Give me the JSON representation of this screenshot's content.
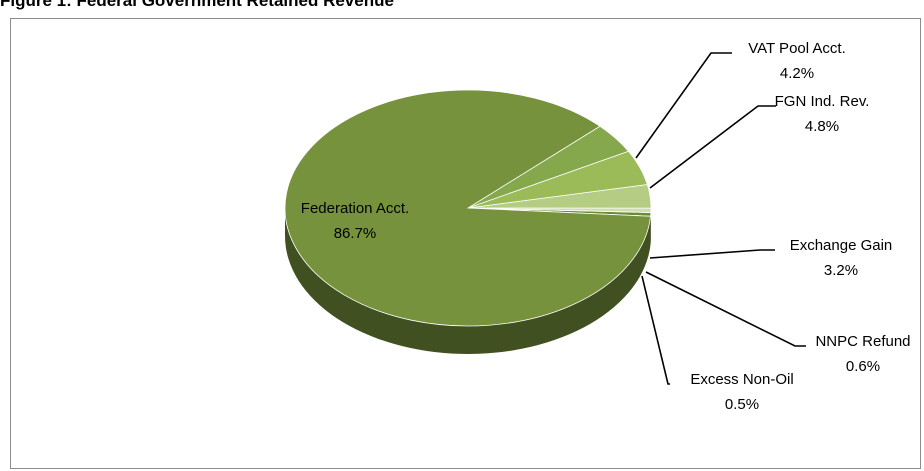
{
  "figure_title": "Figure 1: Federal Government Retained Revenue",
  "chart_data": {
    "type": "pie",
    "title": "",
    "three_d": true,
    "slices": [
      {
        "label": "Federation Acct.",
        "value": 86.7,
        "value_label": "86.7%",
        "color": "#76923c"
      },
      {
        "label": "VAT Pool Acct.",
        "value": 4.2,
        "value_label": "4.2%",
        "color": "#86a84c"
      },
      {
        "label": "FGN Ind. Rev.",
        "value": 4.8,
        "value_label": "4.8%",
        "color": "#9bbb59"
      },
      {
        "label": "Exchange Gain",
        "value": 3.2,
        "value_label": "3.2%",
        "color": "#b4cd82"
      },
      {
        "label": "NNPC Refund",
        "value": 0.6,
        "value_label": "0.6%",
        "color": "#cddfae"
      },
      {
        "label": "Excess Non-Oil",
        "value": 0.5,
        "value_label": "0.5%",
        "color": "#6b8a3a"
      }
    ]
  }
}
